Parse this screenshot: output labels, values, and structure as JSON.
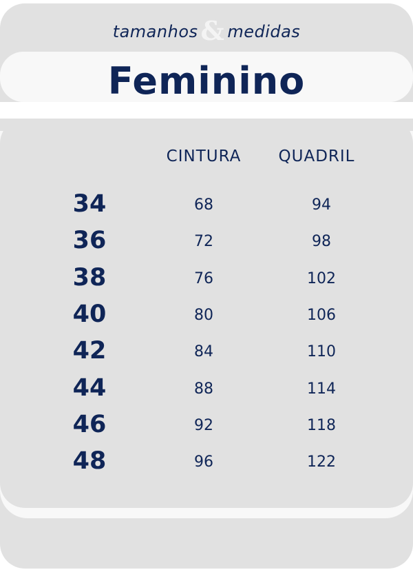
{
  "header": {
    "subtitle_left": "tamanhos",
    "subtitle_amp": "&",
    "subtitle_right": "medidas",
    "title": "Feminino"
  },
  "table": {
    "columns": [
      "",
      "CINTURA",
      "QUADRIL"
    ],
    "rows": [
      {
        "size": "34",
        "cintura": "68",
        "quadril": "94"
      },
      {
        "size": "36",
        "cintura": "72",
        "quadril": "98"
      },
      {
        "size": "38",
        "cintura": "76",
        "quadril": "102"
      },
      {
        "size": "40",
        "cintura": "80",
        "quadril": "106"
      },
      {
        "size": "42",
        "cintura": "84",
        "quadril": "110"
      },
      {
        "size": "44",
        "cintura": "88",
        "quadril": "114"
      },
      {
        "size": "46",
        "cintura": "92",
        "quadril": "118"
      },
      {
        "size": "48",
        "cintura": "96",
        "quadril": "122"
      }
    ]
  },
  "colors": {
    "text": "#0f2557",
    "panel": "#e1e1e1",
    "band": "#f8f8f8"
  }
}
